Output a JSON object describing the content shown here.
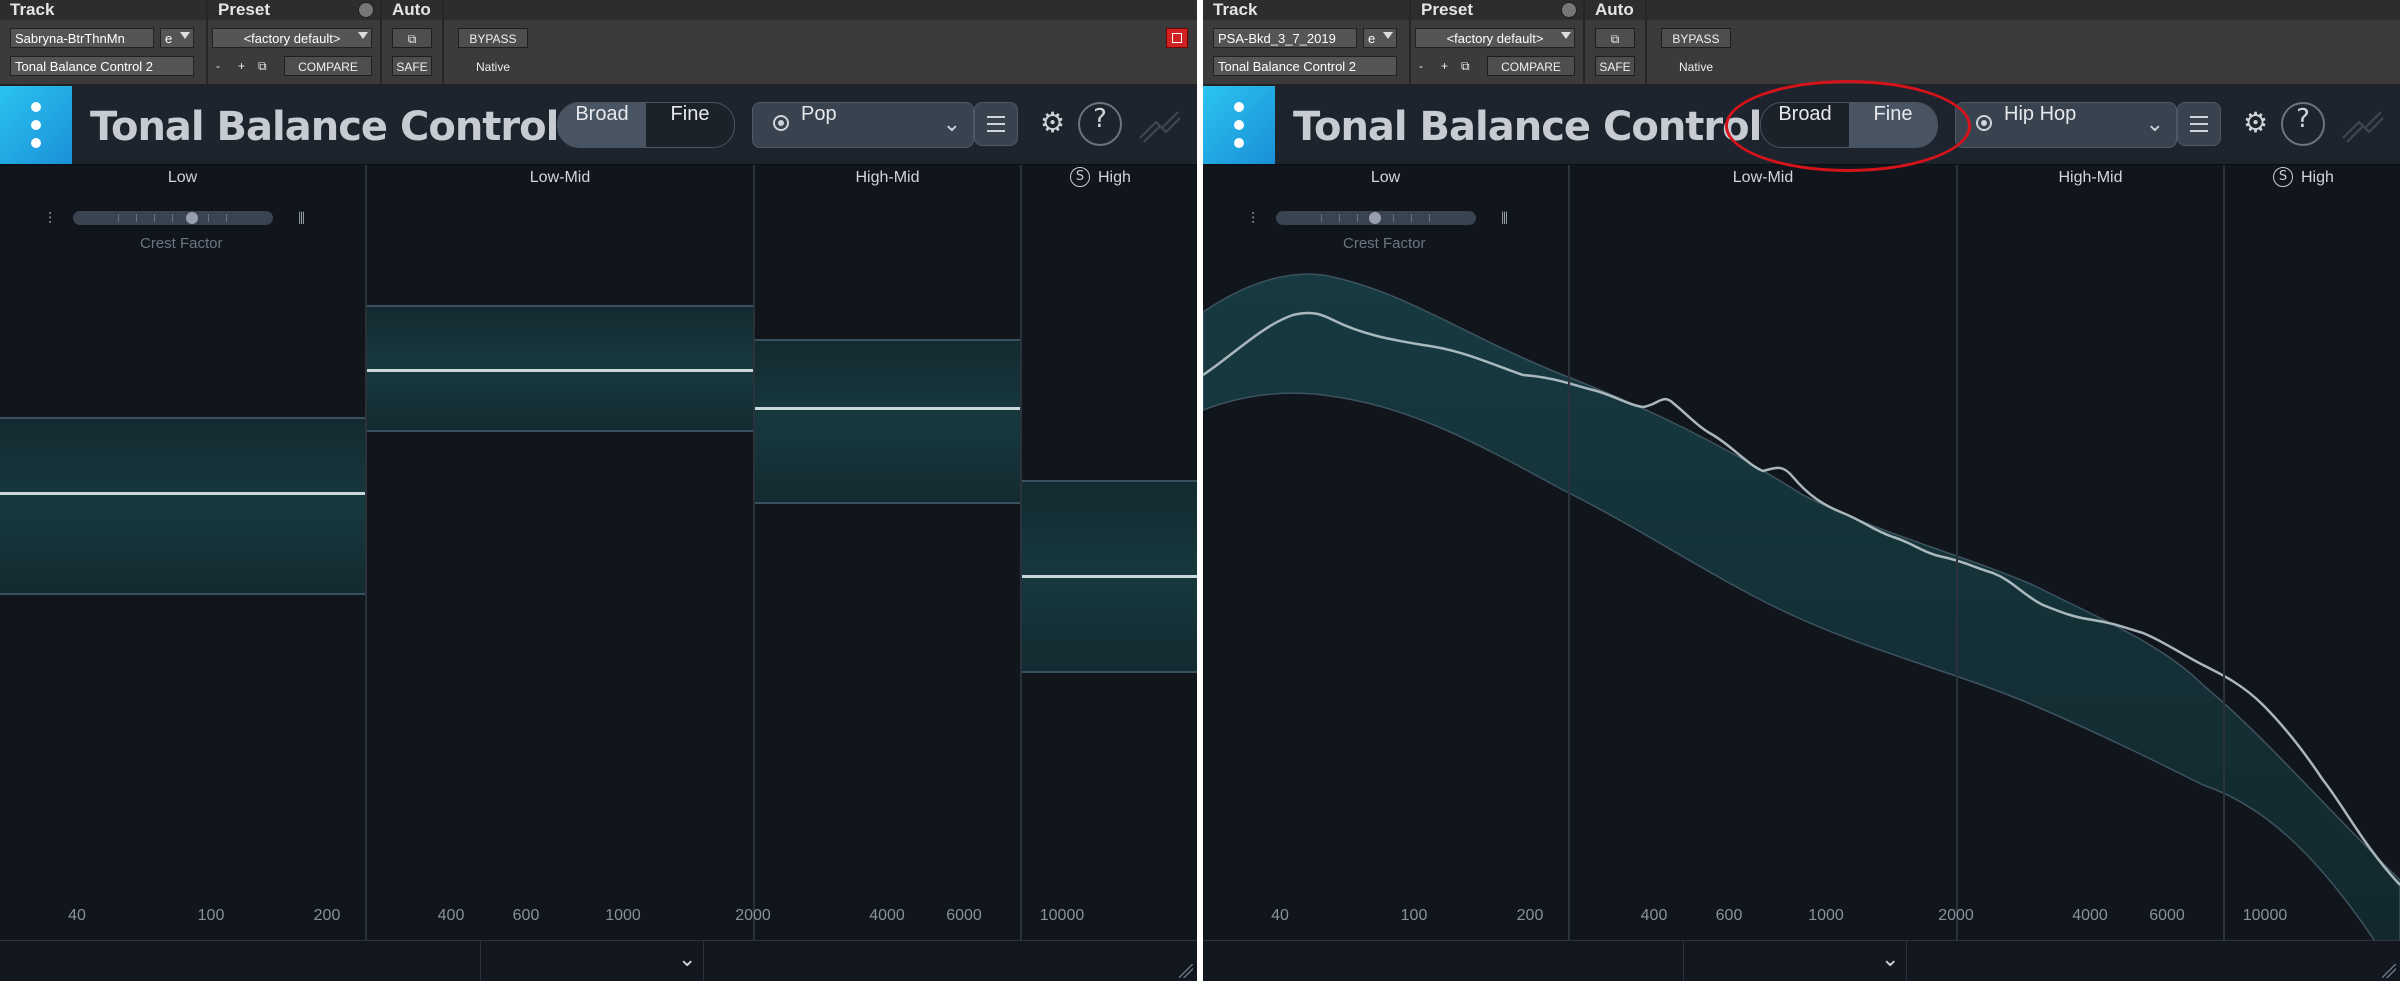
{
  "panels": [
    {
      "protools": {
        "track_label": "Track",
        "track_name": "Sabryna-BtrThnMn",
        "track_e": "e",
        "insert_name": "Tonal Balance Control 2",
        "preset_label": "Preset",
        "preset_value": "<factory default>",
        "minus": "-",
        "plus": "+",
        "compare": "COMPARE",
        "auto_label": "Auto",
        "safe": "SAFE",
        "bypass": "BYPASS",
        "native": "Native"
      },
      "plugin": {
        "title": "Tonal Balance Control",
        "broad": "Broad",
        "fine": "Fine",
        "active_mode": "broad",
        "target": "Pop",
        "help": "?"
      },
      "bands": {
        "low": "Low",
        "low_mid": "Low-Mid",
        "high_mid": "High-Mid",
        "high": "High"
      },
      "crest_factor": "Crest Factor",
      "freq_labels": [
        "40",
        "100",
        "200",
        "400",
        "600",
        "1000",
        "2000",
        "4000",
        "6000",
        "10000"
      ]
    },
    {
      "protools": {
        "track_label": "Track",
        "track_name": "PSA-Bkd_3_7_2019",
        "track_e": "e",
        "insert_name": "Tonal Balance Control 2",
        "preset_label": "Preset",
        "preset_value": "<factory default>",
        "minus": "-",
        "plus": "+",
        "compare": "COMPARE",
        "auto_label": "Auto",
        "safe": "SAFE",
        "bypass": "BYPASS",
        "native": "Native"
      },
      "plugin": {
        "title": "Tonal Balance Control",
        "broad": "Broad",
        "fine": "Fine",
        "active_mode": "fine",
        "target": "Hip Hop",
        "help": "?"
      },
      "bands": {
        "low": "Low",
        "low_mid": "Low-Mid",
        "high_mid": "High-Mid",
        "high": "High"
      },
      "crest_factor": "Crest Factor",
      "freq_labels": [
        "40",
        "100",
        "200",
        "400",
        "600",
        "1000",
        "2000",
        "4000",
        "6000",
        "10000"
      ]
    }
  ],
  "colors": {
    "annotation": "#d4141a",
    "accent": "#2bc4f0",
    "target_fill": "#16393e",
    "target_line": "#c9d6da"
  }
}
